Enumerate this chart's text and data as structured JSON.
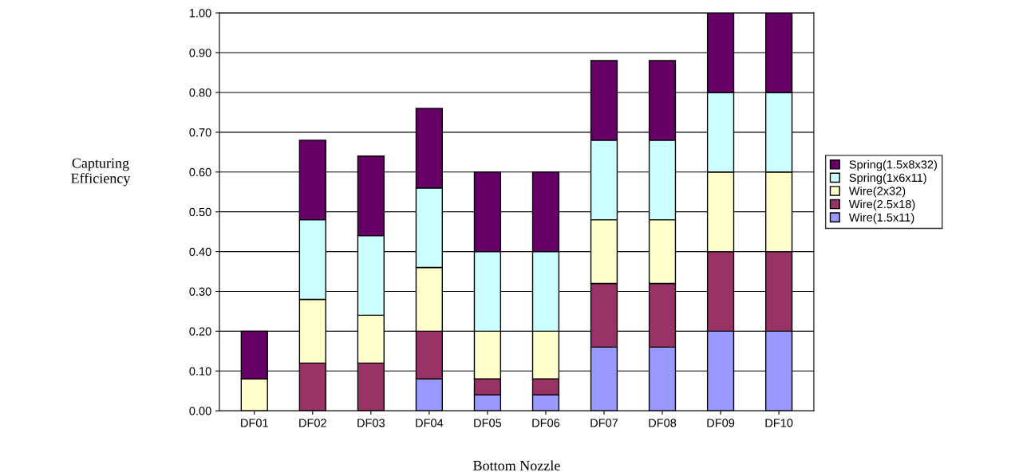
{
  "chart_data": {
    "type": "bar",
    "stacked": true,
    "xlabel": "Bottom Nozzle",
    "ylabel": "Capturing\nEfficiency",
    "categories": [
      "DF01",
      "DF02",
      "DF03",
      "DF04",
      "DF05",
      "DF06",
      "DF07",
      "DF08",
      "DF09",
      "DF10"
    ],
    "series": [
      {
        "name": "Wire(1.5x11)",
        "color": "#9999ff",
        "values": [
          0,
          0,
          0,
          0.08,
          0.04,
          0.04,
          0.16,
          0.16,
          0.2,
          0.2
        ]
      },
      {
        "name": "Wire(2.5x18)",
        "color": "#993366",
        "values": [
          0,
          0.12,
          0.12,
          0.12,
          0.04,
          0.04,
          0.16,
          0.16,
          0.2,
          0.2
        ]
      },
      {
        "name": "Wire(2x32)",
        "color": "#ffffcc",
        "values": [
          0.08,
          0.16,
          0.12,
          0.16,
          0.12,
          0.12,
          0.16,
          0.16,
          0.2,
          0.2
        ]
      },
      {
        "name": "Spring(1x6x11)",
        "color": "#ccffff",
        "values": [
          0,
          0.2,
          0.2,
          0.2,
          0.2,
          0.2,
          0.2,
          0.2,
          0.2,
          0.2
        ]
      },
      {
        "name": "Spring(1.5x8x32)",
        "color": "#660066",
        "values": [
          0.12,
          0.2,
          0.2,
          0.2,
          0.2,
          0.2,
          0.2,
          0.2,
          0.2,
          0.2
        ]
      }
    ],
    "ylim": [
      0,
      1
    ],
    "yticks": [
      {
        "value": 0,
        "label": "0.00"
      },
      {
        "value": 0.1,
        "label": "0.10"
      },
      {
        "value": 0.2,
        "label": "0.20"
      },
      {
        "value": 0.3,
        "label": "0.30"
      },
      {
        "value": 0.4,
        "label": "0.40"
      },
      {
        "value": 0.5,
        "label": "0.50"
      },
      {
        "value": 0.6,
        "label": "0.60"
      },
      {
        "value": 0.7,
        "label": "0.70"
      },
      {
        "value": 0.8,
        "label": "0.80"
      },
      {
        "value": 0.9,
        "label": "0.90"
      },
      {
        "value": 1.0,
        "label": "1.00"
      }
    ],
    "grid": "y",
    "legend": "right"
  }
}
